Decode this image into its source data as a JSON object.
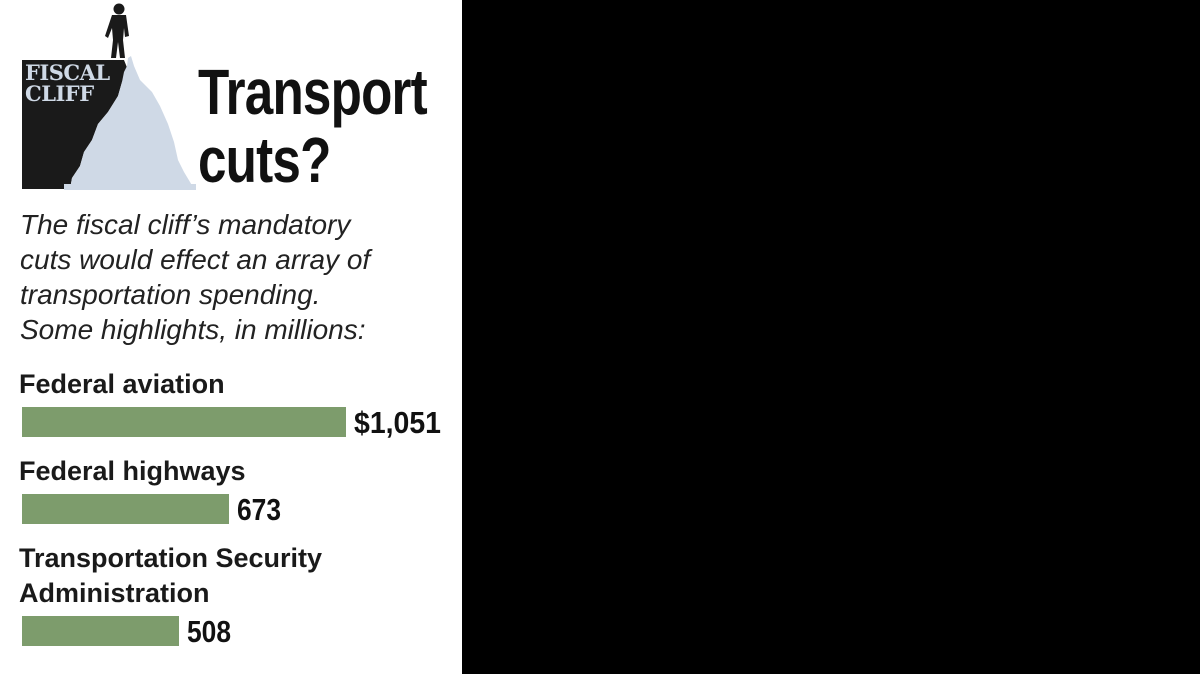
{
  "logo": {
    "line1": "FISCAL",
    "line2": "CLIFF"
  },
  "heading": {
    "line1": "Transport",
    "line2": "cuts?"
  },
  "intro_lines": [
    "The fiscal cliff’s mandatory",
    "cuts would effect an array of",
    "transportation spending.",
    "Some highlights, in millions:"
  ],
  "colors": {
    "bar": "#7d9c6c",
    "panel": "#ffffff",
    "background": "#000000",
    "logo_dark": "#1a1a1a",
    "capitol": "#cfd9e6"
  },
  "chart_data": {
    "type": "bar",
    "orientation": "horizontal",
    "categories": [
      [
        "Federal aviation"
      ],
      [
        "Federal highways"
      ],
      [
        "Transportation Security",
        "Administration"
      ]
    ],
    "values": [
      1051,
      673,
      508
    ],
    "value_labels": [
      "$1,051",
      "673",
      "508"
    ],
    "unit": "millions of dollars",
    "xlim": [
      0,
      1051
    ],
    "grid": false,
    "legend": "none"
  }
}
